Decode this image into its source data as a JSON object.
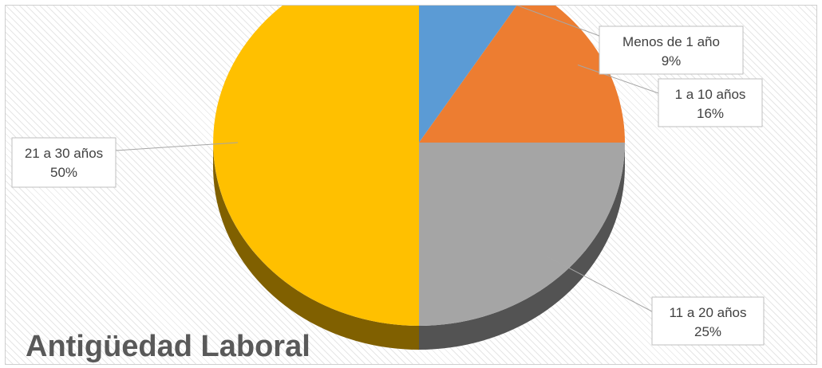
{
  "chart_data": {
    "type": "pie",
    "title": "Antigüedad Laboral",
    "slices": [
      {
        "label": "Menos de 1 año",
        "value": 9,
        "value_label": "9%",
        "color": "#5b9bd5"
      },
      {
        "label": "1 a 10 años",
        "value": 16,
        "value_label": "16%",
        "color": "#ed7d31"
      },
      {
        "label": "11 a 20 años",
        "value": 25,
        "value_label": "25%",
        "color": "#a5a5a5"
      },
      {
        "label": "21 a 30 años",
        "value": 50,
        "value_label": "50%",
        "color": "#ffc000"
      }
    ],
    "start_angle": "12 o'clock",
    "direction": "clockwise",
    "style": "3d",
    "legend": "none"
  }
}
